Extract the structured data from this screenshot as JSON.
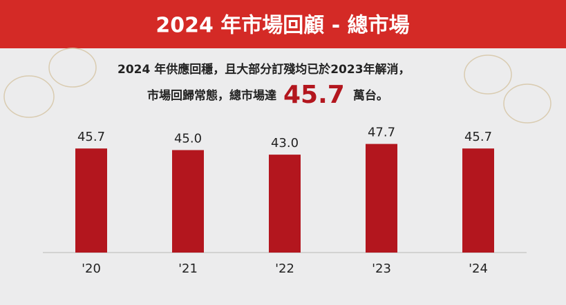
{
  "chart_data": {
    "type": "bar",
    "title": "2024 年市場回顧 - 總市場",
    "subtitle": "2024 年供應回穩，且大部分訂殘均已於2023年解消，",
    "note_before": "市場回歸常態，總市場達",
    "note_highlight": "45.7",
    "note_after": "萬台。",
    "categories": [
      "'20",
      "'21",
      "'22",
      "'23",
      "'24"
    ],
    "values": [
      45.7,
      45.0,
      43.0,
      47.7,
      45.7
    ],
    "value_labels": [
      "45.7",
      "45.0",
      "43.0",
      "47.7",
      "45.7"
    ],
    "color": "#b3161e",
    "ylim": [
      0,
      50
    ]
  }
}
